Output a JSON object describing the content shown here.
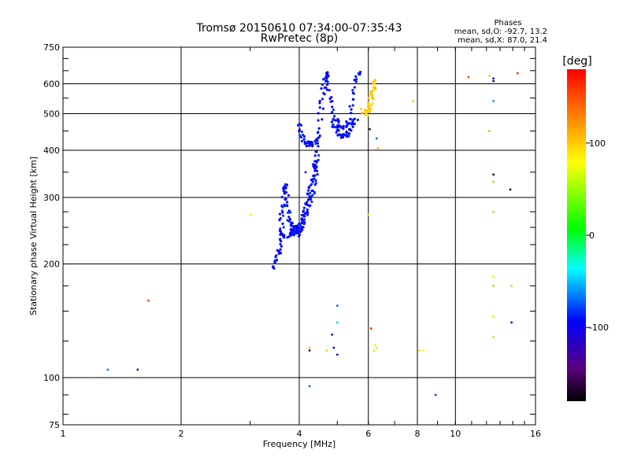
{
  "chart_data": {
    "type": "scatter",
    "title": "Tromsø 20150610 07:34:00-07:35:43",
    "subtitle": "RwPretec (8p)",
    "xlabel": "Frequency [MHz]",
    "ylabel": "Stationary phase Virtual Height [km]",
    "x_scale": "log",
    "y_scale": "log",
    "xlim": [
      1,
      16
    ],
    "ylim": [
      75,
      750
    ],
    "x_ticks": [
      1,
      2,
      4,
      6,
      8,
      10,
      16
    ],
    "y_ticks": [
      75,
      100,
      200,
      300,
      400,
      500,
      600,
      750
    ],
    "x_gridlines": [
      2,
      4,
      6,
      8,
      10
    ],
    "y_gridlines": [
      100,
      200,
      300,
      400,
      500,
      600
    ],
    "grid": true,
    "phase_legend": {
      "title": "Phases",
      "line_o": "mean, sd,O: -92.7, 13.2",
      "line_x": "mean, sd,X:  87.0, 21.4"
    },
    "colorbar": {
      "label": "[deg]",
      "range": [
        -180,
        180
      ],
      "ticks": [
        100,
        0,
        -100
      ],
      "tick_labels": [
        "100",
        "0",
        "-100"
      ],
      "colormap": "rainbow (black-purple-blue-cyan-green-yellow-orange-red)"
    },
    "traces": [
      {
        "phase": -92,
        "points": [
          [
            3.45,
            195
          ],
          [
            3.5,
            205
          ],
          [
            3.55,
            215
          ],
          [
            3.58,
            230
          ],
          [
            3.6,
            250
          ],
          [
            3.62,
            270
          ],
          [
            3.65,
            290
          ],
          [
            3.68,
            310
          ],
          [
            3.7,
            325
          ],
          [
            3.72,
            300
          ],
          [
            3.75,
            270
          ],
          [
            3.8,
            255
          ],
          [
            3.85,
            245
          ],
          [
            3.9,
            240
          ],
          [
            3.95,
            240
          ],
          [
            4.0,
            245
          ],
          [
            4.05,
            250
          ],
          [
            4.1,
            260
          ],
          [
            4.15,
            275
          ],
          [
            4.2,
            290
          ],
          [
            4.25,
            305
          ],
          [
            4.3,
            325
          ],
          [
            4.35,
            345
          ],
          [
            4.4,
            370
          ],
          [
            4.45,
            400
          ],
          [
            4.5,
            450
          ],
          [
            4.55,
            520
          ],
          [
            4.6,
            580
          ],
          [
            4.65,
            620
          ],
          [
            4.7,
            645
          ],
          [
            4.75,
            600
          ],
          [
            4.8,
            540
          ],
          [
            4.9,
            490
          ],
          [
            5.0,
            470
          ],
          [
            5.1,
            460
          ],
          [
            5.2,
            455
          ],
          [
            5.3,
            470
          ],
          [
            5.4,
            500
          ],
          [
            5.5,
            560
          ],
          [
            5.6,
            625
          ],
          [
            5.7,
            640
          ]
        ]
      },
      {
        "phase": -92,
        "points": [
          [
            3.6,
            240
          ],
          [
            3.7,
            235
          ],
          [
            3.8,
            240
          ],
          [
            3.9,
            248
          ],
          [
            4.0,
            255
          ],
          [
            4.1,
            265
          ],
          [
            4.2,
            280
          ],
          [
            4.3,
            300
          ],
          [
            4.35,
            320
          ],
          [
            4.4,
            350
          ],
          [
            4.45,
            380
          ]
        ]
      },
      {
        "phase": -92,
        "points": [
          [
            4.0,
            470
          ],
          [
            4.05,
            440
          ],
          [
            4.1,
            425
          ],
          [
            4.2,
            415
          ],
          [
            4.3,
            415
          ],
          [
            4.4,
            420
          ],
          [
            4.5,
            440
          ]
        ]
      },
      {
        "phase": -92,
        "points": [
          [
            4.9,
            470
          ],
          [
            5.0,
            450
          ],
          [
            5.1,
            440
          ],
          [
            5.2,
            435
          ],
          [
            5.3,
            440
          ],
          [
            5.4,
            455
          ],
          [
            5.5,
            470
          ],
          [
            5.6,
            480
          ]
        ]
      },
      {
        "phase": 100,
        "points": [
          [
            5.8,
            510
          ],
          [
            5.9,
            500
          ],
          [
            6.0,
            505
          ],
          [
            6.05,
            520
          ],
          [
            6.1,
            545
          ],
          [
            6.15,
            565
          ],
          [
            6.2,
            590
          ],
          [
            6.25,
            620
          ]
        ]
      }
    ],
    "points": [
      {
        "x": 1.3,
        "y": 105,
        "phase": -70
      },
      {
        "x": 1.55,
        "y": 105,
        "phase": -110
      },
      {
        "x": 1.65,
        "y": 160,
        "phase": 150
      },
      {
        "x": 3.0,
        "y": 270,
        "phase": 80
      },
      {
        "x": 4.15,
        "y": 350,
        "phase": -90
      },
      {
        "x": 4.25,
        "y": 120,
        "phase": 100
      },
      {
        "x": 4.25,
        "y": 118,
        "phase": -160
      },
      {
        "x": 4.25,
        "y": 95,
        "phase": -70
      },
      {
        "x": 4.7,
        "y": 118,
        "phase": 100
      },
      {
        "x": 4.85,
        "y": 130,
        "phase": -150
      },
      {
        "x": 4.9,
        "y": 120,
        "phase": -100
      },
      {
        "x": 5.0,
        "y": 155,
        "phase": -70
      },
      {
        "x": 5.0,
        "y": 140,
        "phase": -50
      },
      {
        "x": 5.0,
        "y": 115,
        "phase": -110
      },
      {
        "x": 6.0,
        "y": 270,
        "phase": 60
      },
      {
        "x": 6.05,
        "y": 455,
        "phase": -150
      },
      {
        "x": 6.1,
        "y": 135,
        "phase": 160
      },
      {
        "x": 6.2,
        "y": 118,
        "phase": 90
      },
      {
        "x": 6.25,
        "y": 122,
        "phase": 70
      },
      {
        "x": 6.3,
        "y": 120,
        "phase": 60
      },
      {
        "x": 6.3,
        "y": 430,
        "phase": -70
      },
      {
        "x": 6.35,
        "y": 405,
        "phase": 110
      },
      {
        "x": 7.8,
        "y": 540,
        "phase": 100
      },
      {
        "x": 8.1,
        "y": 118,
        "phase": 90
      },
      {
        "x": 8.3,
        "y": 118,
        "phase": 80
      },
      {
        "x": 8.9,
        "y": 90,
        "phase": -80
      },
      {
        "x": 10.8,
        "y": 625,
        "phase": 150
      },
      {
        "x": 12.2,
        "y": 630,
        "phase": 100
      },
      {
        "x": 12.2,
        "y": 450,
        "phase": 110
      },
      {
        "x": 12.5,
        "y": 620,
        "phase": -90
      },
      {
        "x": 12.5,
        "y": 610,
        "phase": -160
      },
      {
        "x": 12.5,
        "y": 540,
        "phase": -60
      },
      {
        "x": 12.5,
        "y": 345,
        "phase": -160
      },
      {
        "x": 12.5,
        "y": 330,
        "phase": 110
      },
      {
        "x": 12.5,
        "y": 275,
        "phase": 40
      },
      {
        "x": 12.5,
        "y": 185,
        "phase": 90
      },
      {
        "x": 12.5,
        "y": 175,
        "phase": 110
      },
      {
        "x": 12.5,
        "y": 145,
        "phase": 60
      },
      {
        "x": 12.5,
        "y": 128,
        "phase": 100
      },
      {
        "x": 13.8,
        "y": 315,
        "phase": -170
      },
      {
        "x": 13.9,
        "y": 175,
        "phase": 40
      },
      {
        "x": 13.9,
        "y": 140,
        "phase": -100
      },
      {
        "x": 14.4,
        "y": 640,
        "phase": 160
      }
    ]
  }
}
